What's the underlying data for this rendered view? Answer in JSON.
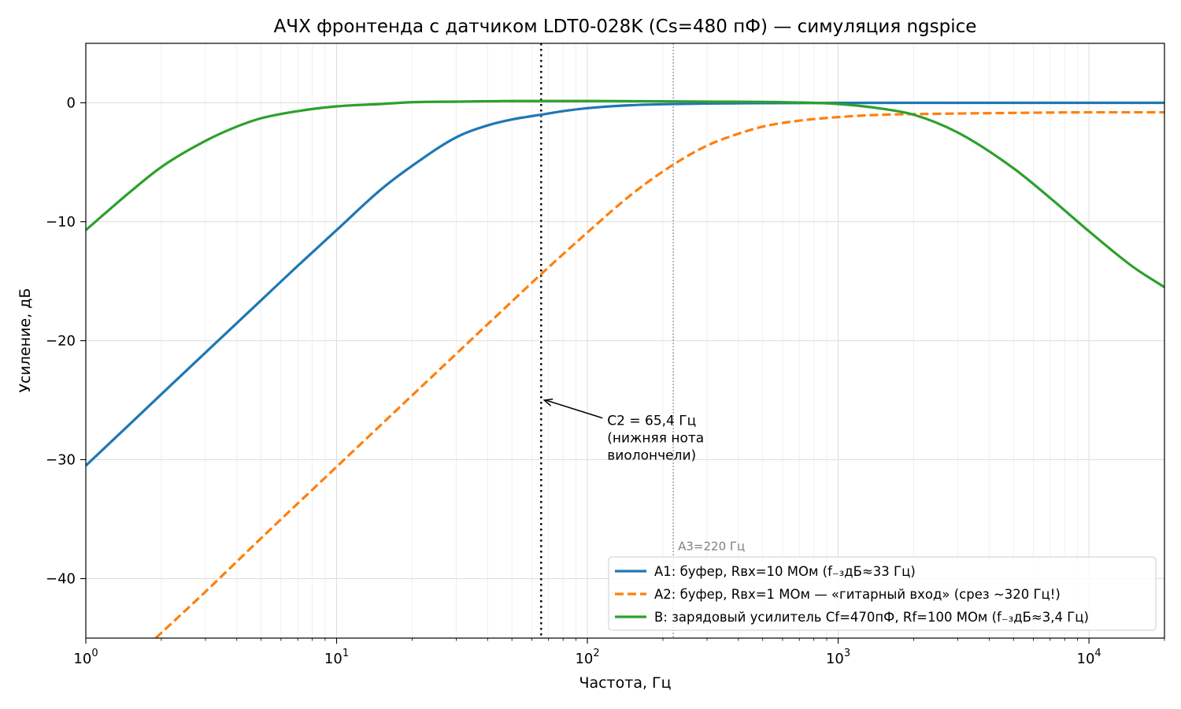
{
  "chart_data": {
    "type": "line",
    "title": "АЧХ фронтенда с датчиком LDT0-028K (Cs=480 пФ) — симуляция ngspice",
    "xlabel": "Частота, Гц",
    "ylabel": "Усиление, дБ",
    "x_scale": "log",
    "xlim": [
      1,
      20000
    ],
    "ylim": [
      -45,
      5
    ],
    "grid": true,
    "legend_position": "bottom-right",
    "x_ticks": [
      {
        "value": 1,
        "base": "10",
        "exp": "0"
      },
      {
        "value": 10,
        "base": "10",
        "exp": "1"
      },
      {
        "value": 100,
        "base": "10",
        "exp": "2"
      },
      {
        "value": 1000,
        "base": "10",
        "exp": "3"
      },
      {
        "value": 10000,
        "base": "10",
        "exp": "4"
      }
    ],
    "y_ticks": [
      {
        "value": 0,
        "label": "0"
      },
      {
        "value": -10,
        "label": "−10"
      },
      {
        "value": -20,
        "label": "−20"
      },
      {
        "value": -30,
        "label": "−30"
      },
      {
        "value": -40,
        "label": "−40"
      }
    ],
    "series": [
      {
        "name": "A1: буфер, Rвх=10 МОм (f₋₃дБ≈33 Гц)",
        "color": "#1f77b4",
        "dash": "solid",
        "x": [
          1,
          1.5,
          2,
          3,
          5,
          7,
          10,
          15,
          20,
          30,
          40,
          50,
          65.4,
          80,
          100,
          150,
          200,
          300,
          500,
          1000,
          2000,
          5000,
          10000,
          20000
        ],
        "y": [
          -30.5,
          -27.0,
          -24.5,
          -21.0,
          -16.6,
          -13.7,
          -10.7,
          -7.3,
          -5.3,
          -2.9,
          -1.9,
          -1.4,
          -1.0,
          -0.7,
          -0.45,
          -0.2,
          -0.12,
          -0.06,
          -0.03,
          -0.01,
          0,
          0,
          0,
          0
        ]
      },
      {
        "name": "A2: буфер, Rвх=1 МОм — «гитарный вход» (срез ~320 Гц!)",
        "color": "#ff7f0e",
        "dash": "dashed",
        "x": [
          1.9,
          3,
          5,
          10,
          20,
          30,
          50,
          65.4,
          100,
          150,
          220,
          300,
          400,
          500,
          700,
          1000,
          1500,
          2000,
          3000,
          5000,
          10000,
          20000
        ],
        "y": [
          -45.0,
          -41.1,
          -36.6,
          -30.6,
          -24.6,
          -21.1,
          -16.7,
          -14.4,
          -10.9,
          -7.7,
          -5.2,
          -3.6,
          -2.6,
          -2.0,
          -1.5,
          -1.2,
          -1.0,
          -0.95,
          -0.9,
          -0.85,
          -0.8,
          -0.8
        ]
      },
      {
        "name": "B: зарядовый усилитель Cf=470пФ, Rf=100 МОм (f₋₃дБ≈3,4 Гц)",
        "color": "#2ca02c",
        "dash": "solid",
        "x": [
          1,
          1.5,
          2,
          3,
          4,
          5,
          7,
          10,
          15,
          20,
          30,
          50,
          100,
          300,
          600,
          1000,
          1500,
          2000,
          3000,
          5000,
          7000,
          10000,
          15000,
          20000
        ],
        "y": [
          -10.7,
          -7.5,
          -5.4,
          -3.2,
          -2.0,
          -1.3,
          -0.7,
          -0.3,
          -0.1,
          0.05,
          0.1,
          0.15,
          0.15,
          0.1,
          0.05,
          -0.1,
          -0.5,
          -1.0,
          -2.5,
          -5.5,
          -8.0,
          -10.8,
          -13.8,
          -15.5
        ]
      }
    ],
    "vertical_lines": [
      {
        "x": 65.4,
        "style": "dotted",
        "color": "#000000"
      },
      {
        "x": 220,
        "style": "dotted-thin",
        "color": "#808080",
        "label": "A3=220 Гц"
      }
    ],
    "annotations": [
      {
        "lines": [
          "C2 = 65,4 Гц",
          "(нижняя нота",
          "виолончели)"
        ],
        "arrow_to": {
          "x": 65.4,
          "y": -25
        },
        "text_at": {
          "x": 120,
          "y": -26.7
        }
      }
    ]
  }
}
